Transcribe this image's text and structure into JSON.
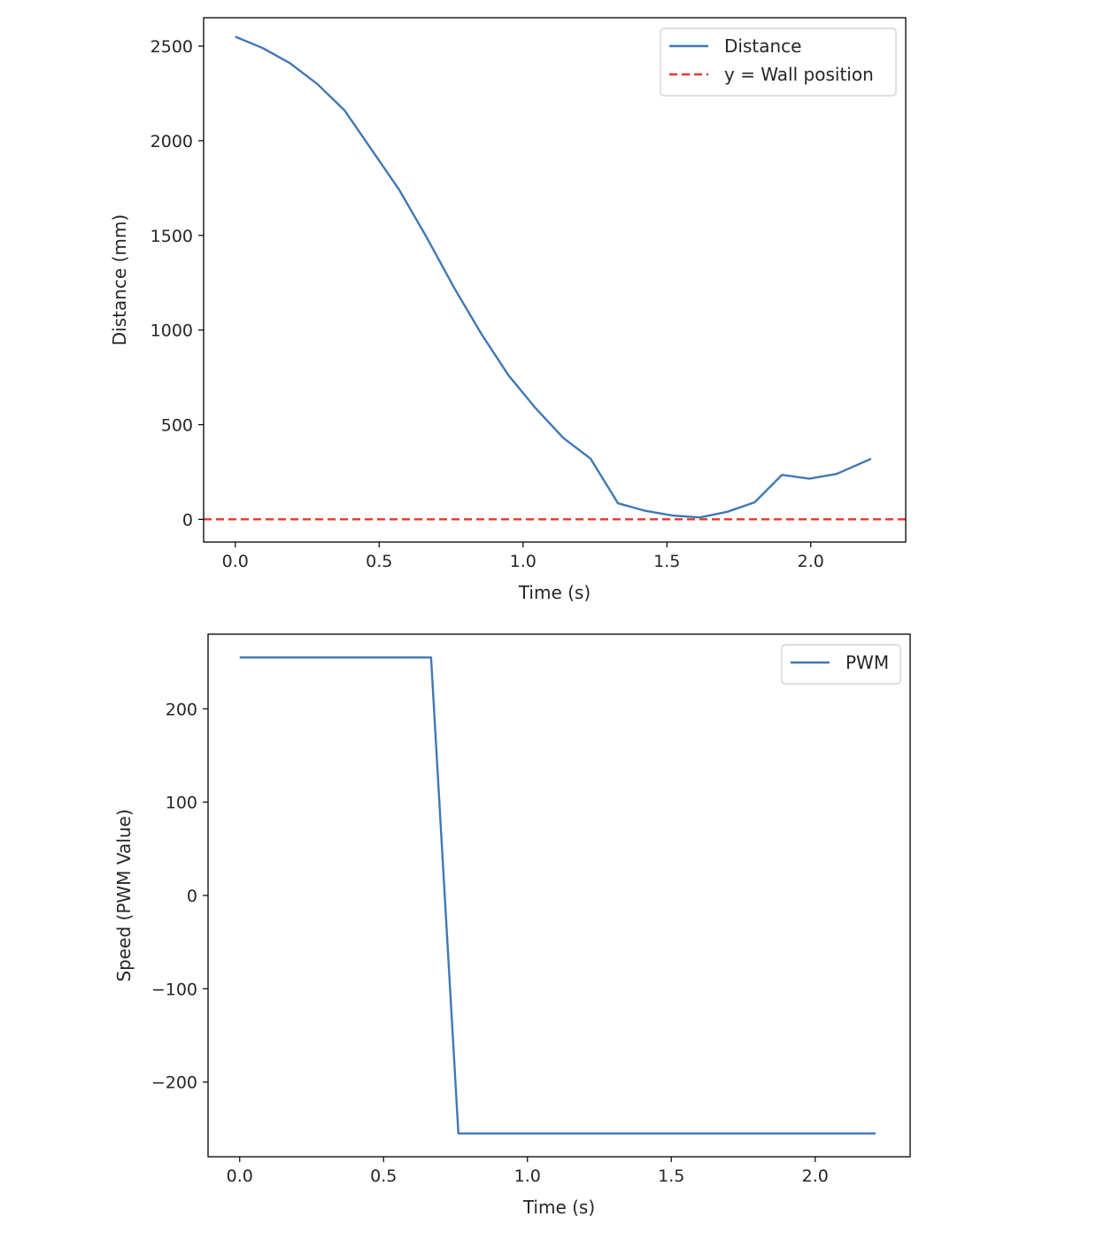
{
  "chart_data": [
    {
      "type": "line",
      "xlabel": "Time (s)",
      "ylabel": "Distance (mm)",
      "xlim": [
        -0.11,
        2.33
      ],
      "ylim": [
        -120,
        2650
      ],
      "xticks": [
        0.0,
        0.5,
        1.0,
        1.5,
        2.0
      ],
      "xtick_labels": [
        "0.0",
        "0.5",
        "1.0",
        "1.5",
        "2.0"
      ],
      "yticks": [
        0,
        500,
        1000,
        1500,
        2000,
        2500
      ],
      "ytick_labels": [
        "0",
        "500",
        "1000",
        "1500",
        "2000",
        "2500"
      ],
      "grid": false,
      "legend_position": "top-right",
      "series": [
        {
          "name": "Distance",
          "color": "#4178b5",
          "style": "solid",
          "x": [
            0.0,
            0.095,
            0.19,
            0.285,
            0.38,
            0.475,
            0.57,
            0.665,
            0.76,
            0.855,
            0.95,
            1.045,
            1.14,
            1.235,
            1.33,
            1.425,
            1.52,
            1.615,
            1.71,
            1.805,
            1.9,
            1.995,
            2.09,
            2.21
          ],
          "y": [
            2550,
            2490,
            2410,
            2300,
            2160,
            1950,
            1740,
            1490,
            1225,
            980,
            760,
            585,
            430,
            320,
            85,
            45,
            20,
            10,
            40,
            90,
            235,
            215,
            240,
            320
          ]
        },
        {
          "name": "y = Wall position",
          "color": "#e8362a",
          "style": "dashed",
          "constant_y": 0
        }
      ]
    },
    {
      "type": "line",
      "xlabel": "Time (s)",
      "ylabel": "Speed (PWM Value)",
      "xlim": [
        -0.11,
        2.33
      ],
      "ylim": [
        -280,
        280
      ],
      "xticks": [
        0.0,
        0.5,
        1.0,
        1.5,
        2.0
      ],
      "xtick_labels": [
        "0.0",
        "0.5",
        "1.0",
        "1.5",
        "2.0"
      ],
      "yticks": [
        -200,
        -100,
        0,
        100,
        200
      ],
      "ytick_labels": [
        "−200",
        "−100",
        "0",
        "100",
        "200"
      ],
      "grid": false,
      "legend_position": "top-right",
      "series": [
        {
          "name": "PWM",
          "color": "#4178b5",
          "style": "solid",
          "x": [
            0.0,
            0.665,
            0.76,
            2.21
          ],
          "y": [
            255,
            255,
            -255,
            -255
          ]
        }
      ]
    }
  ]
}
